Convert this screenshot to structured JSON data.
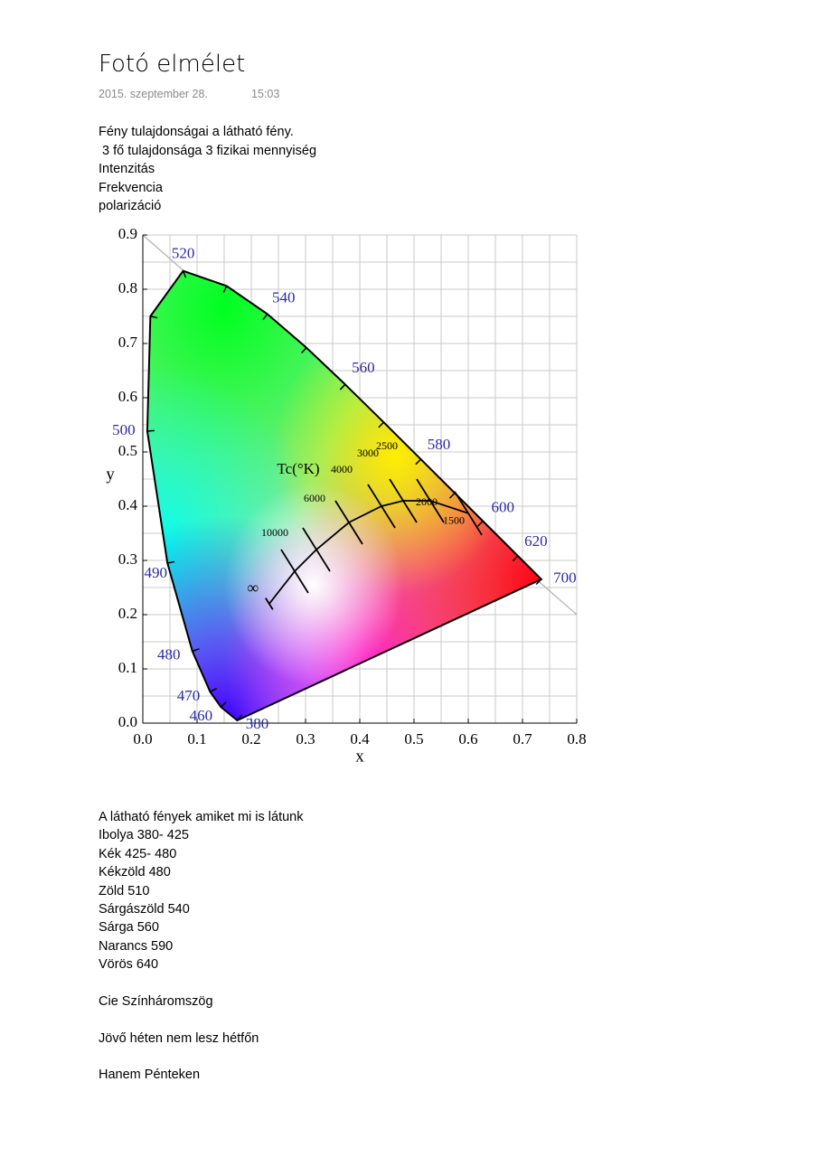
{
  "title": "Fotó elmélet",
  "date": "2015. szeptember 28.",
  "time": "15:03",
  "intro": [
    "Fény tulajdonságai a látható fény.",
    " 3 fő tulajdonsága 3 fizikai mennyiség",
    "Intenzitás",
    "Frekvencia",
    "polarizáció"
  ],
  "chart_data": {
    "type": "cie",
    "xlabel": "x",
    "ylabel": "y",
    "xlim": [
      0,
      0.8
    ],
    "ylim": [
      0,
      0.9
    ],
    "xticks": [
      {
        "value": 0,
        "label": "0.0"
      },
      0.1,
      0.2,
      0.3,
      0.4,
      0.5,
      0.6,
      0.7,
      0.8
    ],
    "yticks": [
      {
        "value": 0,
        "label": "0.0"
      },
      0.1,
      0.2,
      0.3,
      0.4,
      0.5,
      0.6,
      0.7,
      0.8,
      0.9
    ],
    "grid": true,
    "xgrid": [
      0,
      0.05,
      0.1,
      0.15,
      0.2,
      0.25,
      0.3,
      0.35,
      0.4,
      0.45,
      0.5,
      0.55,
      0.6,
      0.65,
      0.7,
      0.75,
      0.8
    ],
    "ygrid": [
      0,
      0.05,
      0.1,
      0.15,
      0.2,
      0.25,
      0.3,
      0.35,
      0.4,
      0.45,
      0.5,
      0.55,
      0.6,
      0.65,
      0.7,
      0.75,
      0.8,
      0.85,
      0.9
    ],
    "locus": {
      "x": [
        0.1741,
        0.144,
        0.1241,
        0.0913,
        0.0454,
        0.0082,
        0.0139,
        0.0743,
        0.1547,
        0.2296,
        0.3016,
        0.3731,
        0.4441,
        0.5125,
        0.5752,
        0.627,
        0.6915,
        0.7347
      ],
      "y": [
        0.005,
        0.0297,
        0.0578,
        0.1327,
        0.295,
        0.5384,
        0.7502,
        0.8338,
        0.8059,
        0.7543,
        0.6923,
        0.6245,
        0.5547,
        0.4866,
        0.4242,
        0.3725,
        0.3083,
        0.2653
      ],
      "labels": [
        "380",
        "460",
        "470",
        "480",
        "490",
        "500",
        null,
        "520",
        null,
        "540",
        null,
        "560",
        null,
        "580",
        null,
        "600",
        "620",
        "700"
      ]
    },
    "planck_title": "Tc(°K)",
    "planck": {
      "x": [
        0.233,
        0.28,
        0.32,
        0.38,
        0.44,
        0.48,
        0.53,
        0.6
      ],
      "y": [
        0.22,
        0.28,
        0.32,
        0.37,
        0.4,
        0.41,
        0.41,
        0.387
      ],
      "labels": [
        "∞",
        "10000",
        "6000",
        "4000",
        "3000",
        "2500",
        "2000",
        "1500"
      ]
    }
  },
  "list": [
    "A látható fények amiket mi is látunk",
    "Ibolya 380- 425",
    "Kék 425- 480",
    "Kékzöld 480",
    "Zöld 510",
    "Sárgászöld 540",
    "Sárga 560",
    "Narancs 590",
    "Vörös 640"
  ],
  "notes": [
    "Cie Színháromszög",
    "Jövő héten nem lesz hétfőn",
    "Hanem Pénteken"
  ]
}
